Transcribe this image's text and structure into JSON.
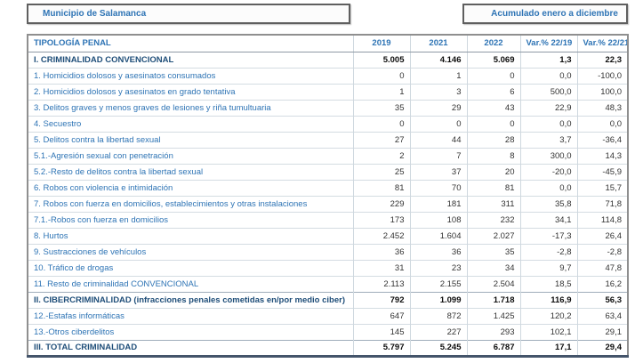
{
  "header": {
    "left_box": "Municipio de Salamanca",
    "right_box": "Acumulado enero a diciembre"
  },
  "colors": {
    "label_blue": "#2e74b5",
    "label_blue_bold": "#1f4e79",
    "value_dark": "#333333",
    "border_light": "#cfd8df",
    "border_outer": "#8f8f8f",
    "border_bottom_thick": "#44546a"
  },
  "chart_data": {
    "type": "table",
    "title": "Municipio de Salamanca",
    "subtitle": "Acumulado enero a diciembre",
    "columns": [
      "TIPOLOGÍA PENAL",
      "2019",
      "2021",
      "2022",
      "Var.% 22/19",
      "Var.% 22/21"
    ],
    "rows": [
      {
        "label": "I. CRIMINALIDAD CONVENCIONAL",
        "values": [
          "5.005",
          "4.146",
          "5.069",
          "1,3",
          "22,3"
        ],
        "bold": true
      },
      {
        "label": "1. Homicidios dolosos y asesinatos consumados",
        "values": [
          "0",
          "1",
          "0",
          "0,0",
          "-100,0"
        ],
        "bold": false
      },
      {
        "label": "2. Homicidios dolosos y asesinatos en grado tentativa",
        "values": [
          "1",
          "3",
          "6",
          "500,0",
          "100,0"
        ],
        "bold": false
      },
      {
        "label": "3. Delitos graves y menos graves de lesiones y riña tumultuaria",
        "values": [
          "35",
          "29",
          "43",
          "22,9",
          "48,3"
        ],
        "bold": false
      },
      {
        "label": "4. Secuestro",
        "values": [
          "0",
          "0",
          "0",
          "0,0",
          "0,0"
        ],
        "bold": false
      },
      {
        "label": "5. Delitos contra la libertad sexual",
        "values": [
          "27",
          "44",
          "28",
          "3,7",
          "-36,4"
        ],
        "bold": false
      },
      {
        "label": "5.1.-Agresión sexual con penetración",
        "values": [
          "2",
          "7",
          "8",
          "300,0",
          "14,3"
        ],
        "bold": false
      },
      {
        "label": "5.2.-Resto de delitos contra la libertad sexual",
        "values": [
          "25",
          "37",
          "20",
          "-20,0",
          "-45,9"
        ],
        "bold": false
      },
      {
        "label": "6. Robos con violencia e intimidación",
        "values": [
          "81",
          "70",
          "81",
          "0,0",
          "15,7"
        ],
        "bold": false
      },
      {
        "label": "7. Robos con fuerza en domicilios, establecimientos y otras instalaciones",
        "values": [
          "229",
          "181",
          "311",
          "35,8",
          "71,8"
        ],
        "bold": false
      },
      {
        "label": "7.1.-Robos con fuerza en domicilios",
        "values": [
          "173",
          "108",
          "232",
          "34,1",
          "114,8"
        ],
        "bold": false
      },
      {
        "label": "8. Hurtos",
        "values": [
          "2.452",
          "1.604",
          "2.027",
          "-17,3",
          "26,4"
        ],
        "bold": false
      },
      {
        "label": "9. Sustracciones de vehículos",
        "values": [
          "36",
          "36",
          "35",
          "-2,8",
          "-2,8"
        ],
        "bold": false
      },
      {
        "label": "10. Tráfico de drogas",
        "values": [
          "31",
          "23",
          "34",
          "9,7",
          "47,8"
        ],
        "bold": false
      },
      {
        "label": "11. Resto de criminalidad CONVENCIONAL",
        "values": [
          "2.113",
          "2.155",
          "2.504",
          "18,5",
          "16,2"
        ],
        "bold": false
      },
      {
        "label": "II. CIBERCRIMINALIDAD (infracciones penales cometidas en/por medio ciber)",
        "values": [
          "792",
          "1.099",
          "1.718",
          "116,9",
          "56,3"
        ],
        "bold": true
      },
      {
        "label": "12.-Estafas informáticas",
        "values": [
          "647",
          "872",
          "1.425",
          "120,2",
          "63,4"
        ],
        "bold": false
      },
      {
        "label": "13.-Otros ciberdelitos",
        "values": [
          "145",
          "227",
          "293",
          "102,1",
          "29,1"
        ],
        "bold": false
      },
      {
        "label": "III. TOTAL CRIMINALIDAD",
        "values": [
          "5.797",
          "5.245",
          "6.787",
          "17,1",
          "29,4"
        ],
        "bold": true
      }
    ]
  }
}
